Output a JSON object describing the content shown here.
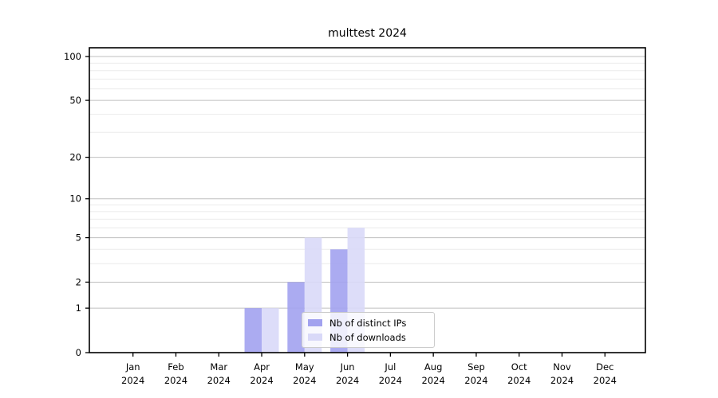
{
  "chart_data": {
    "type": "bar",
    "title": "multtest 2024",
    "categories": [
      "Jan",
      "Feb",
      "Mar",
      "Apr",
      "May",
      "Jun",
      "Jul",
      "Aug",
      "Sep",
      "Oct",
      "Nov",
      "Dec"
    ],
    "x_tick_second_line": "2024",
    "series": [
      {
        "name": "Nb of distinct IPs",
        "color": "#a2a2ef",
        "values": [
          0,
          0,
          0,
          1,
          2,
          4,
          0,
          0,
          0,
          0,
          0,
          0
        ]
      },
      {
        "name": "Nb of downloads",
        "color": "#d9d9f8",
        "values": [
          0,
          0,
          0,
          1,
          5,
          6,
          0,
          0,
          0,
          0,
          0,
          0
        ]
      }
    ],
    "yticks": [
      0,
      1,
      2,
      5,
      10,
      20,
      50,
      100
    ],
    "minor_yticks": [
      3,
      4,
      6,
      7,
      8,
      9,
      30,
      40,
      60,
      70,
      80,
      90
    ],
    "ylim": [
      0,
      100
    ],
    "yscale": "log10(1+v)",
    "grid": true,
    "legend_position": "bottom-center"
  }
}
